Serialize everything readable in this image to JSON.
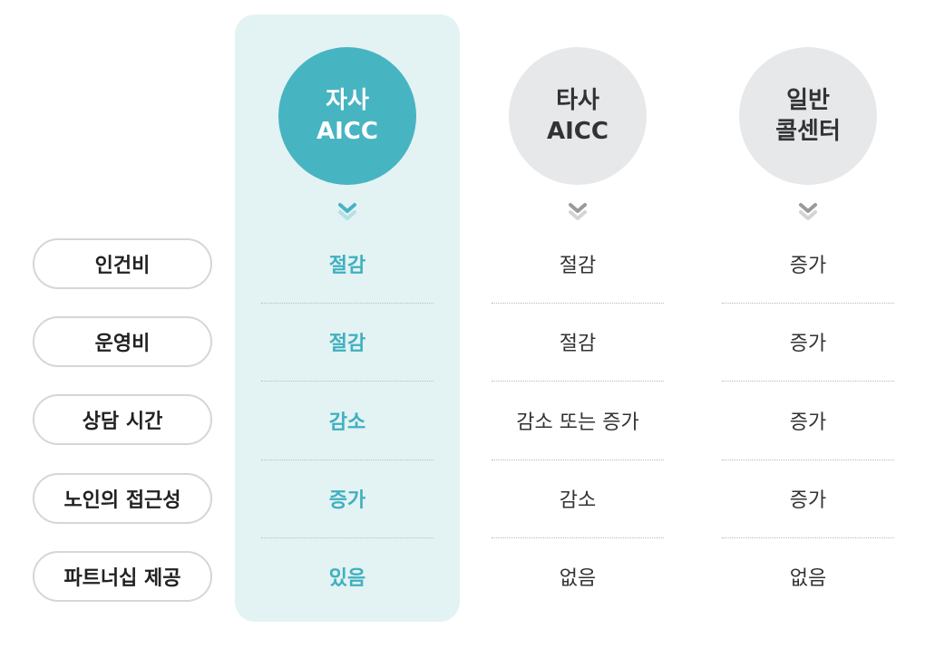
{
  "columns": [
    {
      "line1": "자사",
      "line2": "AICC"
    },
    {
      "line1": "타사",
      "line2": "AICC"
    },
    {
      "line1": "일반",
      "line2": "콜센터"
    }
  ],
  "colors": {
    "accent": "#47b4c2",
    "accent_text": "#3fb0bf",
    "highlight_bg": "#e3f2f3",
    "neutral_circle": "#e7e8ea"
  },
  "chevron_icon": "double-chevron-down-icon",
  "rows": [
    {
      "label": "인건비",
      "values": [
        "절감",
        "절감",
        "증가"
      ]
    },
    {
      "label": "운영비",
      "values": [
        "절감",
        "절감",
        "증가"
      ]
    },
    {
      "label": "상담 시간",
      "values": [
        "감소",
        "감소 또는 증가",
        "증가"
      ]
    },
    {
      "label": "노인의 접근성",
      "values": [
        "증가",
        "감소",
        "증가"
      ]
    },
    {
      "label": "파트너십 제공",
      "values": [
        "있음",
        "없음",
        "없음"
      ]
    }
  ]
}
